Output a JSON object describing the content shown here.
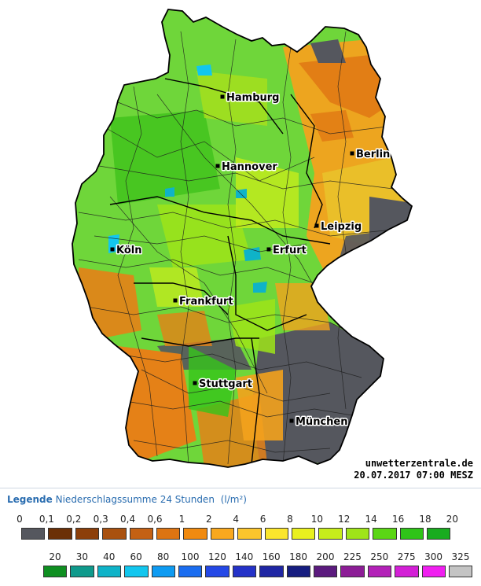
{
  "map": {
    "cities": [
      {
        "name": "Hamburg",
        "dot": [
          283,
          123
        ]
      },
      {
        "name": "Berlin",
        "dot": [
          448,
          195
        ]
      },
      {
        "name": "Hannover",
        "dot": [
          277,
          211
        ]
      },
      {
        "name": "Leipzig",
        "dot": [
          403,
          287
        ]
      },
      {
        "name": "Köln",
        "dot": [
          143,
          317
        ]
      },
      {
        "name": "Erfurt",
        "dot": [
          342,
          317
        ]
      },
      {
        "name": "Frankfurt",
        "dot": [
          223,
          382
        ]
      },
      {
        "name": "Stuttgart",
        "dot": [
          248,
          487
        ]
      },
      {
        "name": "München",
        "dot": [
          371,
          535
        ]
      }
    ]
  },
  "watermark": {
    "site": "unwetterzentrale.de",
    "timestamp": "20.07.2017 07:00 MESZ"
  },
  "legend": {
    "title": "Legende",
    "subtitle": "Niederschlagssumme 24 Stunden",
    "unit": "(l/m²)",
    "row1": {
      "labels": [
        "0",
        "0,1",
        "0,2",
        "0,3",
        "0,4",
        "0,6",
        "1",
        "2",
        "4",
        "6",
        "8",
        "10",
        "12",
        "14",
        "16",
        "18",
        "20"
      ],
      "colors": [
        "#55575e",
        "#6b3006",
        "#8c3f0a",
        "#a9510f",
        "#c46114",
        "#dd7412",
        "#f08a10",
        "#f9a81e",
        "#fbc52c",
        "#fbe62c",
        "#e9f01f",
        "#c6ec1c",
        "#9fe419",
        "#5bd615",
        "#2fc418",
        "#19ac1f"
      ]
    },
    "row2": {
      "labels": [
        "20",
        "30",
        "40",
        "60",
        "80",
        "100",
        "120",
        "140",
        "160",
        "180",
        "200",
        "225",
        "250",
        "275",
        "300",
        "325"
      ],
      "colors": [
        "#0f8f21",
        "#0f9a8c",
        "#0fb3c8",
        "#12c6ee",
        "#0e9bf2",
        "#1a6df0",
        "#2448e6",
        "#2432c8",
        "#1f26a4",
        "#161d80",
        "#5b1a7e",
        "#8c1d96",
        "#b321b8",
        "#d320d6",
        "#f01ff0",
        "#c4c4c4"
      ]
    }
  }
}
